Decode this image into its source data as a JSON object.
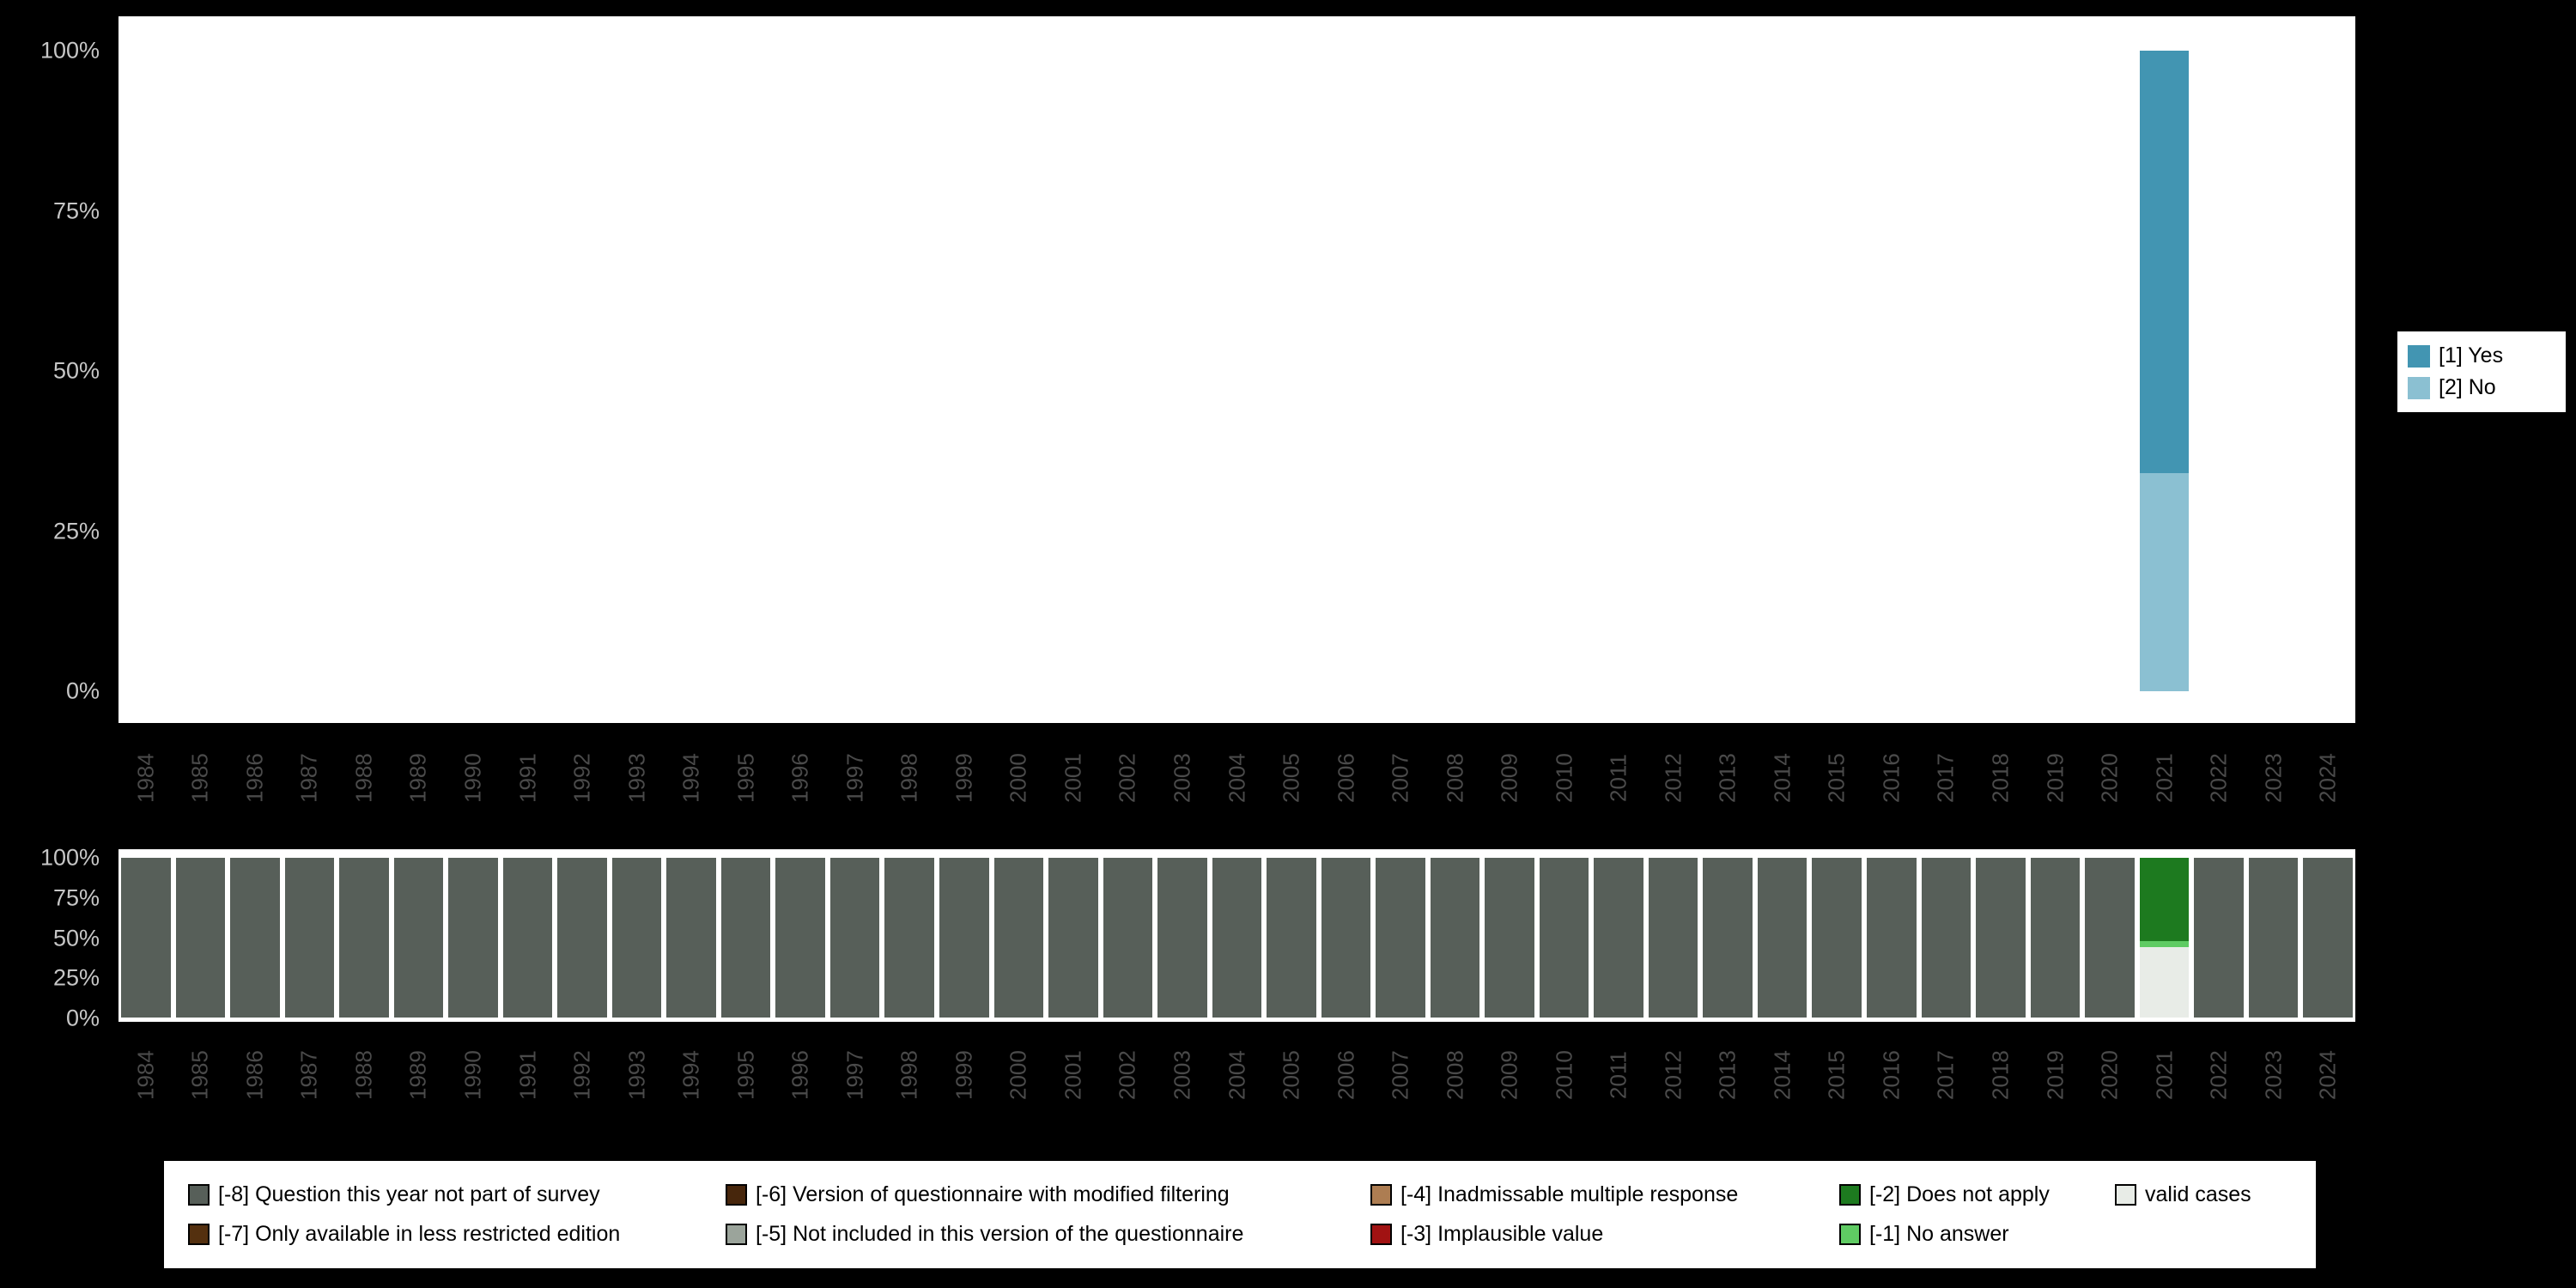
{
  "page": {
    "background": "#000000"
  },
  "axes": {
    "years": [
      "1984",
      "1985",
      "1986",
      "1987",
      "1988",
      "1989",
      "1990",
      "1991",
      "1992",
      "1993",
      "1994",
      "1995",
      "1996",
      "1997",
      "1998",
      "1999",
      "2000",
      "2001",
      "2002",
      "2003",
      "2004",
      "2005",
      "2006",
      "2007",
      "2008",
      "2009",
      "2010",
      "2011",
      "2012",
      "2013",
      "2014",
      "2015",
      "2016",
      "2017",
      "2018",
      "2019",
      "2020",
      "2021",
      "2022",
      "2023",
      "2024"
    ],
    "ytick_labels": [
      "100%",
      "75%",
      "50%",
      "25%",
      "0%"
    ]
  },
  "chart_data": [
    {
      "type": "bar",
      "name": "survey-responses-by-year",
      "stacked": true,
      "title": "",
      "xlabel": "",
      "ylabel": "",
      "ylim": [
        0,
        100
      ],
      "grid": false,
      "legend_position": "right",
      "categories": [
        "1984",
        "1985",
        "1986",
        "1987",
        "1988",
        "1989",
        "1990",
        "1991",
        "1992",
        "1993",
        "1994",
        "1995",
        "1996",
        "1997",
        "1998",
        "1999",
        "2000",
        "2001",
        "2002",
        "2003",
        "2004",
        "2005",
        "2006",
        "2007",
        "2008",
        "2009",
        "2010",
        "2011",
        "2012",
        "2013",
        "2014",
        "2015",
        "2016",
        "2017",
        "2018",
        "2019",
        "2020",
        "2021",
        "2022",
        "2023",
        "2024"
      ],
      "series": [
        {
          "name": "[2] No",
          "color": "#8bc0d2",
          "default": 0,
          "values_by_year": {
            "2021": 34
          }
        },
        {
          "name": "[1] Yes",
          "color": "#4295b2",
          "default": 0,
          "values_by_year": {
            "2021": 66
          }
        }
      ],
      "legend": [
        {
          "label": "[1] Yes",
          "color": "#4295b2"
        },
        {
          "label": "[2] No",
          "color": "#8bc0d2"
        }
      ]
    },
    {
      "type": "bar",
      "name": "missing-values-by-year",
      "stacked": true,
      "title": "",
      "xlabel": "",
      "ylabel": "",
      "ylim": [
        0,
        100
      ],
      "grid": false,
      "legend_position": "bottom",
      "categories": [
        "1984",
        "1985",
        "1986",
        "1987",
        "1988",
        "1989",
        "1990",
        "1991",
        "1992",
        "1993",
        "1994",
        "1995",
        "1996",
        "1997",
        "1998",
        "1999",
        "2000",
        "2001",
        "2002",
        "2003",
        "2004",
        "2005",
        "2006",
        "2007",
        "2008",
        "2009",
        "2010",
        "2011",
        "2012",
        "2013",
        "2014",
        "2015",
        "2016",
        "2017",
        "2018",
        "2019",
        "2020",
        "2021",
        "2022",
        "2023",
        "2024"
      ],
      "series": [
        {
          "name": "valid cases",
          "color": "#e8ece7",
          "default": 0,
          "values_by_year": {
            "2021": 44
          }
        },
        {
          "name": "[-1] No answer",
          "color": "#5fcb63",
          "default": 0,
          "values_by_year": {
            "2021": 4
          }
        },
        {
          "name": "[-2] Does not apply",
          "color": "#1d7a1f",
          "default": 0,
          "values_by_year": {
            "2021": 52
          }
        },
        {
          "name": "[-3] Implausible value",
          "color": "#a11212",
          "default": 0,
          "values_by_year": {}
        },
        {
          "name": "[-4] Inadmissable multiple response",
          "color": "#ad7d52",
          "default": 0,
          "values_by_year": {}
        },
        {
          "name": "[-5] Not included in this version of the questionnaire",
          "color": "#9ba49b",
          "default": 0,
          "values_by_year": {}
        },
        {
          "name": "[-6] Version of questionnaire with modified filtering",
          "color": "#47260c",
          "default": 0,
          "values_by_year": {}
        },
        {
          "name": "[-7] Only available in less restricted edition",
          "color": "#54300f",
          "default": 0,
          "values_by_year": {}
        },
        {
          "name": "[-8] Question this year not part of survey",
          "color": "#575f59",
          "default": 100,
          "values_by_year": {
            "2021": 0
          }
        }
      ],
      "legend": [
        {
          "label": "[-8] Question this year not part of survey",
          "color": "#575f59"
        },
        {
          "label": "[-7] Only available in less restricted edition",
          "color": "#54300f"
        },
        {
          "label": "[-6] Version of questionnaire with modified filtering",
          "color": "#47260c"
        },
        {
          "label": "[-5] Not included in this version of the questionnaire",
          "color": "#9ba49b"
        },
        {
          "label": "[-4] Inadmissable multiple response",
          "color": "#ad7d52"
        },
        {
          "label": "[-3] Implausible value",
          "color": "#a11212"
        },
        {
          "label": "[-2] Does not apply",
          "color": "#1d7a1f"
        },
        {
          "label": "[-1] No answer",
          "color": "#5fcb63"
        },
        {
          "label": "valid cases",
          "color": "#e8ece7"
        }
      ]
    }
  ]
}
